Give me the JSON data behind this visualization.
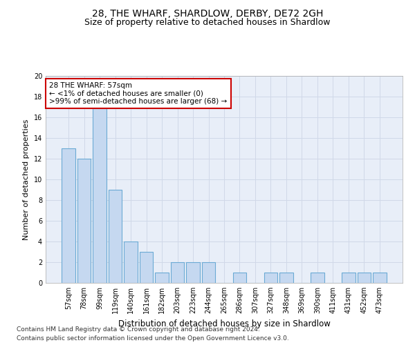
{
  "title1": "28, THE WHARF, SHARDLOW, DERBY, DE72 2GH",
  "title2": "Size of property relative to detached houses in Shardlow",
  "xlabel": "Distribution of detached houses by size in Shardlow",
  "ylabel": "Number of detached properties",
  "categories": [
    "57sqm",
    "78sqm",
    "99sqm",
    "119sqm",
    "140sqm",
    "161sqm",
    "182sqm",
    "203sqm",
    "223sqm",
    "244sqm",
    "265sqm",
    "286sqm",
    "307sqm",
    "327sqm",
    "348sqm",
    "369sqm",
    "390sqm",
    "411sqm",
    "431sqm",
    "452sqm",
    "473sqm"
  ],
  "values": [
    13,
    12,
    17,
    9,
    4,
    3,
    1,
    2,
    2,
    2,
    0,
    1,
    0,
    1,
    1,
    0,
    1,
    0,
    1,
    1,
    1
  ],
  "bar_color": "#c5d8f0",
  "bar_edge_color": "#6aaad4",
  "annotation_text": "28 THE WHARF: 57sqm\n← <1% of detached houses are smaller (0)\n>99% of semi-detached houses are larger (68) →",
  "annotation_box_facecolor": "#ffffff",
  "annotation_box_edge": "#cc0000",
  "ylim": [
    0,
    20
  ],
  "yticks": [
    0,
    2,
    4,
    6,
    8,
    10,
    12,
    14,
    16,
    18,
    20
  ],
  "grid_color": "#d0d8e8",
  "background_color": "#e8eef8",
  "footer1": "Contains HM Land Registry data © Crown copyright and database right 2024.",
  "footer2": "Contains public sector information licensed under the Open Government Licence v3.0.",
  "title1_fontsize": 10,
  "title2_fontsize": 9,
  "xlabel_fontsize": 8.5,
  "ylabel_fontsize": 8,
  "tick_fontsize": 7,
  "annotation_fontsize": 7.5,
  "footer_fontsize": 6.5
}
